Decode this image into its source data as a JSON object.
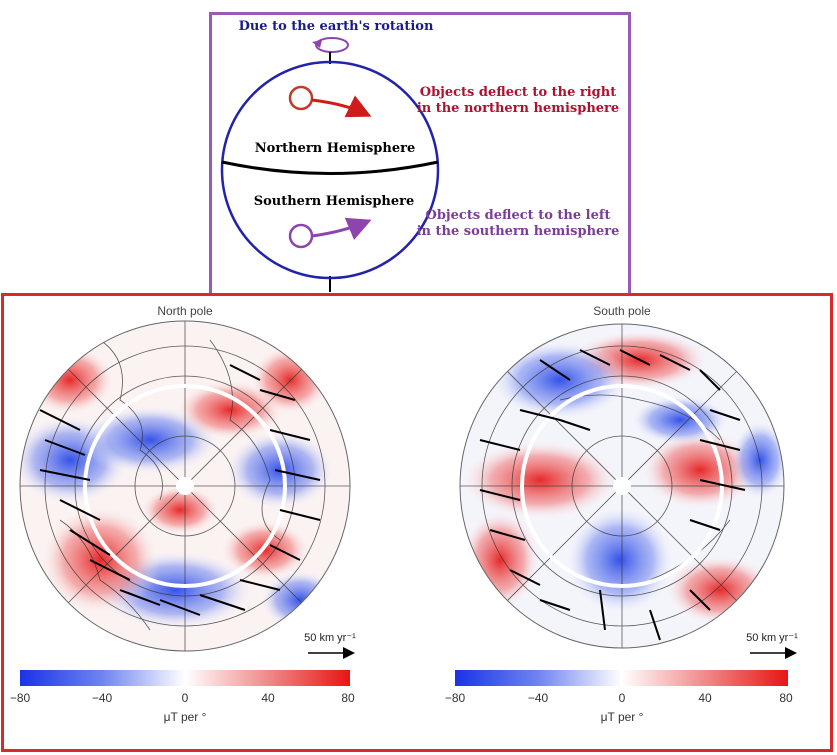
{
  "coriolis": {
    "rotation_label": "Due to the earth's rotation",
    "north_label": "Northern Hemisphere",
    "south_label": "Southern Hemisphere",
    "north_note_line1": "Objects deflect to the right",
    "north_note_line2": "in the northern hemisphere",
    "south_note_line1": "Objects deflect to the left",
    "south_note_line2": "in the southern hemisphere",
    "colors": {
      "frame": "#9b59b6",
      "globe": "#2222aa",
      "north": "#b01030",
      "south": "#8e44ad",
      "title": "#1a1a8c"
    }
  },
  "maps": {
    "north_title": "North pole",
    "south_title": "South pole",
    "scale_label": "50 km yr⁻¹",
    "colorbar_ticks": [
      "−80",
      "−40",
      "0",
      "40",
      "80"
    ],
    "colorbar_unit": "μT per °",
    "colors": {
      "frame": "#d62b2b",
      "neg": "#1f3fe0",
      "pos": "#e81c1c"
    }
  }
}
